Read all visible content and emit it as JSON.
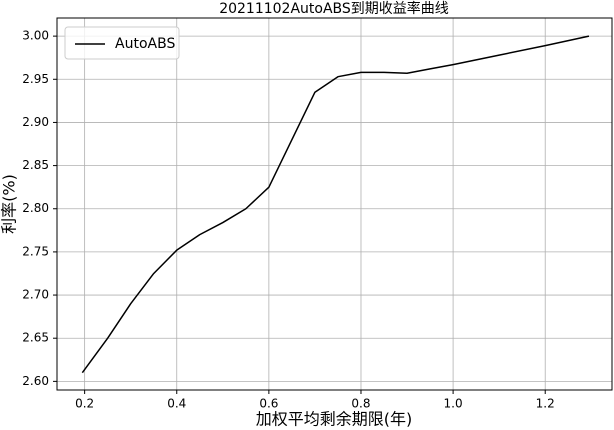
{
  "chart_data": {
    "type": "line",
    "title": "20211102AutoABS到期收益率曲线",
    "xlabel": "加权平均剩余期限(年)",
    "ylabel": "利率(%)",
    "x": [
      0.195,
      0.25,
      0.3,
      0.35,
      0.4,
      0.45,
      0.5,
      0.55,
      0.6,
      0.65,
      0.7,
      0.75,
      0.8,
      0.85,
      0.9,
      0.95,
      1.0,
      1.1,
      1.2,
      1.295
    ],
    "series": [
      {
        "name": "AutoABS",
        "color": "#000000",
        "values": [
          2.61,
          2.65,
          2.69,
          2.725,
          2.752,
          2.77,
          2.784,
          2.8,
          2.825,
          2.88,
          2.935,
          2.953,
          2.958,
          2.958,
          2.957,
          2.962,
          2.967,
          2.978,
          2.989,
          3.0
        ]
      }
    ],
    "xlim": [
      0.14,
      1.345
    ],
    "ylim": [
      2.59,
      3.021
    ],
    "xticks": [
      0.2,
      0.4,
      0.6,
      0.8,
      {
        "value": 1.0,
        "label": "1.0"
      },
      1.2
    ],
    "yticks": [
      {
        "value": 2.6,
        "label": "2.60"
      },
      {
        "value": 2.65,
        "label": "2.65"
      },
      {
        "value": 2.7,
        "label": "2.70"
      },
      {
        "value": 2.75,
        "label": "2.75"
      },
      {
        "value": 2.8,
        "label": "2.80"
      },
      {
        "value": 2.85,
        "label": "2.85"
      },
      {
        "value": 2.9,
        "label": "2.90"
      },
      {
        "value": 2.95,
        "label": "2.95"
      },
      {
        "value": 3.0,
        "label": "3.00"
      }
    ],
    "grid": true,
    "legend": "upper-left"
  }
}
